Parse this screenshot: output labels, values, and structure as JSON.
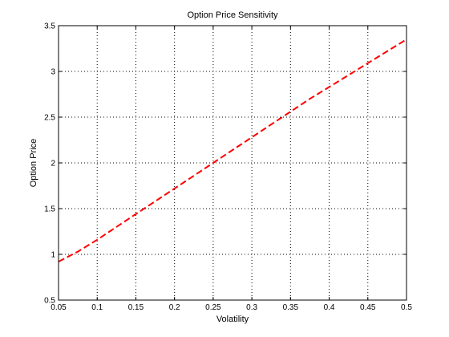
{
  "chart_data": {
    "type": "line",
    "title": "Option Price Sensitivity",
    "xlabel": "Volatility",
    "ylabel": "Option Price",
    "xlim": [
      0.05,
      0.5
    ],
    "ylim": [
      0.5,
      3.5
    ],
    "xticks": [
      0.05,
      0.1,
      0.15,
      0.2,
      0.25,
      0.3,
      0.35,
      0.4,
      0.45,
      0.5
    ],
    "xtick_labels": [
      "0.05",
      "0.1",
      "0.15",
      "0.2",
      "0.25",
      "0.3",
      "0.35",
      "0.4",
      "0.45",
      "0.5"
    ],
    "yticks": [
      0.5,
      1,
      1.5,
      2,
      2.5,
      3,
      3.5
    ],
    "ytick_labels": [
      "0.5",
      "1",
      "1.5",
      "2",
      "2.5",
      "3",
      "3.5"
    ],
    "grid": true,
    "series": [
      {
        "color": "#ff0000",
        "line_style": "dashed",
        "x": [
          0.05,
          0.075,
          0.1,
          0.125,
          0.15,
          0.175,
          0.2,
          0.225,
          0.25,
          0.275,
          0.3,
          0.325,
          0.35,
          0.375,
          0.4,
          0.425,
          0.45,
          0.475,
          0.5
        ],
        "y": [
          0.92,
          1.03,
          1.16,
          1.3,
          1.44,
          1.58,
          1.72,
          1.86,
          2.0,
          2.14,
          2.28,
          2.42,
          2.56,
          2.7,
          2.83,
          2.96,
          3.09,
          3.22,
          3.35
        ]
      }
    ]
  }
}
